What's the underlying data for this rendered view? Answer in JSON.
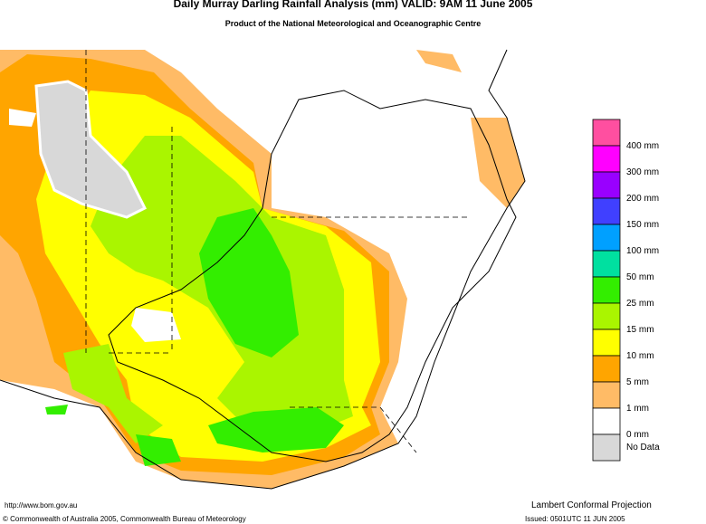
{
  "header": {
    "title": "Daily Murray Darling Rainfall Analysis (mm)  VALID: 9AM 11 June 2005",
    "subtitle": "Product of the National Meteorological and Oceanographic Centre"
  },
  "legend": {
    "items": [
      {
        "label": "400 mm",
        "color": "#ff4fa0"
      },
      {
        "label": "300 mm",
        "color": "#ff00ff"
      },
      {
        "label": "200 mm",
        "color": "#9900ff"
      },
      {
        "label": "150 mm",
        "color": "#4040ff"
      },
      {
        "label": "100 mm",
        "color": "#00a0ff"
      },
      {
        "label": "50 mm",
        "color": "#00e0a0"
      },
      {
        "label": "25 mm",
        "color": "#33ee00"
      },
      {
        "label": "15 mm",
        "color": "#aaf500"
      },
      {
        "label": "10 mm",
        "color": "#ffff00"
      },
      {
        "label": "5 mm",
        "color": "#ffa500"
      },
      {
        "label": "1 mm",
        "color": "#ffbb66"
      },
      {
        "label": "0 mm",
        "color": "#ffffff"
      },
      {
        "label": "No Data",
        "color": "#d8d8d8"
      }
    ]
  },
  "footer": {
    "url": "http://www.bom.gov.au",
    "copyright": "© Commonwealth of Australia 2005, Commonwealth Bureau of Meteorology",
    "projection": "Lambert Conformal Projection",
    "issued": "Issued: 0501UTC 11 JUN 2005"
  }
}
